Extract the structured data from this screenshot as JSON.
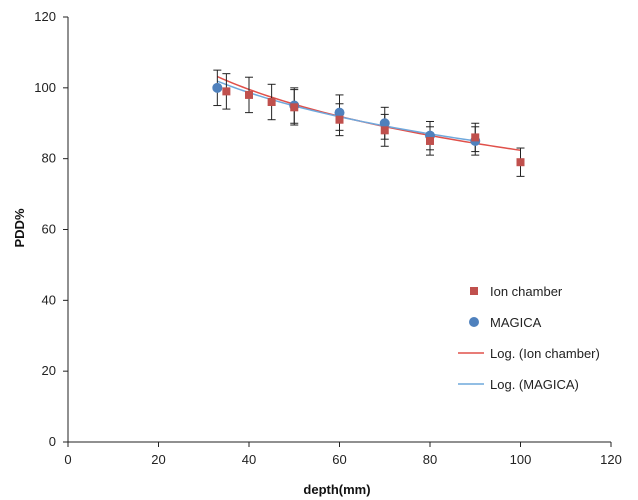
{
  "chart_data": {
    "type": "scatter",
    "xlabel": "depth(mm)",
    "ylabel": "PDD%",
    "xlim": [
      0,
      120
    ],
    "ylim": [
      0,
      120
    ],
    "xticks": [
      0,
      20,
      40,
      60,
      80,
      100,
      120
    ],
    "yticks": [
      0,
      20,
      40,
      60,
      80,
      100,
      120
    ],
    "grid": false,
    "legend_position": "right",
    "series": [
      {
        "name": "Ion chamber",
        "marker": "square",
        "color": "#c0504d",
        "points": [
          {
            "x": 35,
            "y": 99,
            "err": 5
          },
          {
            "x": 40,
            "y": 98,
            "err": 5
          },
          {
            "x": 45,
            "y": 96,
            "err": 5
          },
          {
            "x": 50,
            "y": 94.5,
            "err": 5
          },
          {
            "x": 60,
            "y": 91,
            "err": 4.5
          },
          {
            "x": 70,
            "y": 88,
            "err": 4.5
          },
          {
            "x": 80,
            "y": 85,
            "err": 4
          },
          {
            "x": 90,
            "y": 86,
            "err": 4
          },
          {
            "x": 100,
            "y": 79,
            "err": 4
          }
        ]
      },
      {
        "name": "MAGICA",
        "marker": "circle",
        "color": "#4f81bd",
        "points": [
          {
            "x": 33,
            "y": 100,
            "err": 5
          },
          {
            "x": 50,
            "y": 95,
            "err": 5
          },
          {
            "x": 60,
            "y": 93,
            "err": 5
          },
          {
            "x": 70,
            "y": 90,
            "err": 4.5
          },
          {
            "x": 80,
            "y": 86.5,
            "err": 4
          },
          {
            "x": 90,
            "y": 85,
            "err": 4
          }
        ]
      }
    ],
    "trendlines": [
      {
        "name": "Log. (Ion chamber)",
        "color": "#e0504a",
        "x_range": [
          33,
          100
        ],
        "a": 168.8,
        "b": -18.77
      },
      {
        "name": "Log. (MAGICA)",
        "color": "#6fa8dc",
        "x_range": [
          33,
          90
        ],
        "a": 160.7,
        "b": -16.82
      }
    ]
  }
}
